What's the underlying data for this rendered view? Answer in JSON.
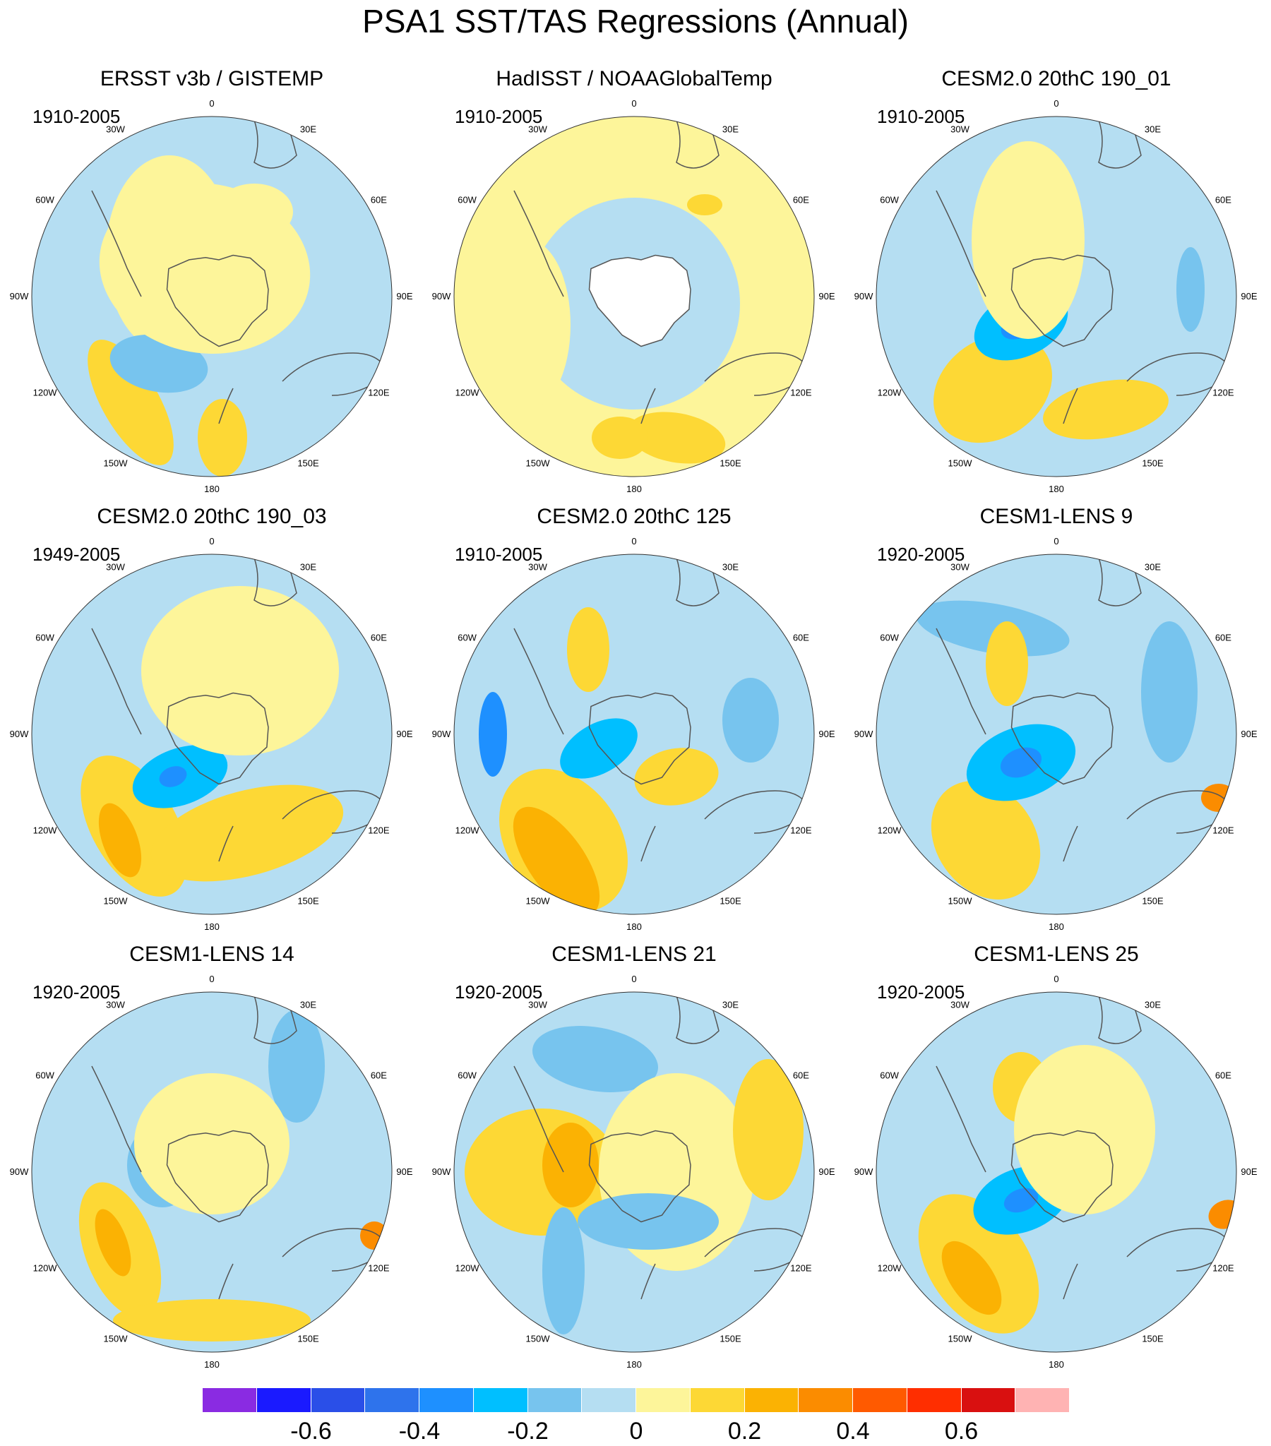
{
  "title": "PSA1 SST/TAS Regressions (Annual)",
  "chart_data": {
    "type": "heatmap",
    "projection": "south-polar-stereographic",
    "units_note": "",
    "longitude_labels": [
      "0",
      "30E",
      "60E",
      "90E",
      "120E",
      "150E",
      "180",
      "150W",
      "120W",
      "90W",
      "60W",
      "30W"
    ],
    "panels": [
      {
        "title": "ERSST v3b / GISTEMP",
        "period": "1910-2005"
      },
      {
        "title": "HadISST / NOAAGlobalTemp",
        "period": "1910-2005"
      },
      {
        "title": "CESM2.0 20thC 190_01",
        "period": "1910-2005"
      },
      {
        "title": "CESM2.0 20thC 190_03",
        "period": "1949-2005"
      },
      {
        "title": "CESM2.0 20thC 125",
        "period": "1910-2005"
      },
      {
        "title": "CESM1-LENS 9",
        "period": "1920-2005"
      },
      {
        "title": "CESM1-LENS 14",
        "period": "1920-2005"
      },
      {
        "title": "CESM1-LENS 21",
        "period": "1920-2005"
      },
      {
        "title": "CESM1-LENS 25",
        "period": "1920-2005"
      }
    ],
    "colorbar": {
      "levels": [
        -0.7,
        -0.6,
        -0.5,
        -0.4,
        -0.3,
        -0.2,
        -0.1,
        0,
        0.1,
        0.2,
        0.3,
        0.4,
        0.5,
        0.6,
        0.7
      ],
      "colors": [
        "#8a2be2",
        "#1a1aff",
        "#2a4fe8",
        "#2e73ec",
        "#1e90ff",
        "#00bfff",
        "#77c4ee",
        "#b5def2",
        "#fdf59a",
        "#fdd835",
        "#fbb203",
        "#fb8c00",
        "#ff5a00",
        "#ff2e00",
        "#d91010",
        "#ffb3b3"
      ],
      "tick_labels": [
        "-0.6",
        "-0.4",
        "-0.2",
        "0",
        "0.2",
        "0.4",
        "0.6"
      ],
      "tick_values": [
        -0.6,
        -0.4,
        -0.2,
        0,
        0.2,
        0.4,
        0.6
      ]
    }
  }
}
